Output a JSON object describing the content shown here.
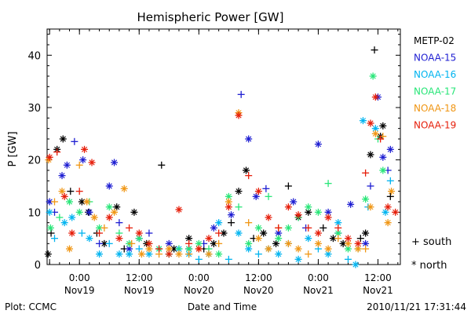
{
  "chart_data": {
    "type": "scatter",
    "title": "Hemispheric Power [GW]",
    "ylabel": "P [GW]",
    "xlabel": "Date and Time",
    "footer_left": "Plot: CCMC",
    "footer_right": "2010/11/21 17:31:44",
    "ylim": [
      0,
      45
    ],
    "yticks": [
      0,
      10,
      20,
      30,
      40
    ],
    "xlim_hours": [
      -6.5,
      17.9
    ],
    "xticks": [
      {
        "hour": -6,
        "label": "",
        "sub": ""
      },
      {
        "hour": 0,
        "label": "0:00",
        "sub": "Nov19"
      },
      {
        "hour": 12,
        "label": "12:00",
        "sub": "Nov19"
      },
      {
        "hour": 24,
        "label": "0:00",
        "sub": "Nov20"
      },
      {
        "hour": 36,
        "label": "12:00",
        "sub": "Nov20"
      },
      {
        "hour": 48,
        "label": "0:00",
        "sub": "Nov21"
      },
      {
        "hour": 60,
        "label": "12:00",
        "sub": "Nov21"
      }
    ],
    "marker_legend": [
      {
        "symbol": "+",
        "label": "south"
      },
      {
        "symbol": "*",
        "label": "north"
      }
    ],
    "series": [
      {
        "name": "METP-02",
        "color": "#000000",
        "points": [
          [
            -6.3,
            2
          ],
          [
            -5.7,
            6
          ],
          [
            -4.5,
            22
          ],
          [
            -3.3,
            24
          ],
          [
            -1.8,
            14
          ],
          [
            0.5,
            12
          ],
          [
            1.8,
            10
          ],
          [
            3.5,
            6
          ],
          [
            5.0,
            4
          ],
          [
            7.5,
            11
          ],
          [
            9,
            3
          ],
          [
            11,
            10
          ],
          [
            13.5,
            4
          ],
          [
            16.5,
            19
          ],
          [
            19,
            3
          ],
          [
            22,
            5
          ],
          [
            25,
            3
          ],
          [
            27,
            4
          ],
          [
            29,
            6
          ],
          [
            30.5,
            8
          ],
          [
            32,
            14
          ],
          [
            33.5,
            18
          ],
          [
            35,
            5
          ],
          [
            37,
            6
          ],
          [
            39.5,
            4
          ],
          [
            42,
            15
          ],
          [
            44,
            9
          ],
          [
            46,
            10
          ],
          [
            49,
            7
          ],
          [
            51,
            5
          ],
          [
            53,
            4
          ],
          [
            56.5,
            5
          ],
          [
            57.5,
            6
          ],
          [
            58.5,
            21
          ],
          [
            59.3,
            41
          ],
          [
            60.5,
            24.5
          ],
          [
            61,
            26.5
          ],
          [
            62.5,
            13
          ]
        ]
      },
      {
        "name": "NOAA-15",
        "color": "#1e1ed2",
        "points": [
          [
            -6,
            12
          ],
          [
            -5,
            10
          ],
          [
            -3.5,
            17
          ],
          [
            -2.5,
            19
          ],
          [
            -1,
            23.5
          ],
          [
            0.7,
            20
          ],
          [
            2,
            10
          ],
          [
            4,
            4
          ],
          [
            6,
            15
          ],
          [
            7,
            19.5
          ],
          [
            8,
            8
          ],
          [
            10,
            3
          ],
          [
            12,
            5
          ],
          [
            14,
            6
          ],
          [
            18,
            4
          ],
          [
            22,
            3
          ],
          [
            25,
            4
          ],
          [
            27,
            7
          ],
          [
            30.5,
            9.5
          ],
          [
            32.5,
            32.5
          ],
          [
            34,
            24
          ],
          [
            35.5,
            13
          ],
          [
            37.5,
            14.5
          ],
          [
            40,
            6
          ],
          [
            43,
            12
          ],
          [
            45.5,
            7
          ],
          [
            48,
            23
          ],
          [
            50,
            10
          ],
          [
            52,
            6
          ],
          [
            54.5,
            11.5
          ],
          [
            57.5,
            4
          ],
          [
            58.5,
            15
          ],
          [
            60,
            32
          ],
          [
            61,
            20.5
          ],
          [
            62,
            18
          ],
          [
            62.5,
            22
          ]
        ]
      },
      {
        "name": "NOAA-16",
        "color": "#00b4f0",
        "points": [
          [
            -6,
            10
          ],
          [
            -5,
            5
          ],
          [
            -3,
            8
          ],
          [
            -1.5,
            9
          ],
          [
            0.5,
            6
          ],
          [
            2,
            5
          ],
          [
            4,
            2
          ],
          [
            6,
            4
          ],
          [
            8,
            2
          ],
          [
            10,
            2
          ],
          [
            12,
            3
          ],
          [
            14,
            2
          ],
          [
            16,
            3
          ],
          [
            18,
            2
          ],
          [
            20,
            3
          ],
          [
            22,
            2
          ],
          [
            24,
            1
          ],
          [
            26,
            2
          ],
          [
            28,
            8
          ],
          [
            30,
            1
          ],
          [
            32,
            6
          ],
          [
            34,
            3
          ],
          [
            36,
            2
          ],
          [
            38,
            3
          ],
          [
            40,
            2
          ],
          [
            42,
            4
          ],
          [
            44,
            1
          ],
          [
            46,
            5
          ],
          [
            48,
            3
          ],
          [
            50,
            2
          ],
          [
            52,
            8
          ],
          [
            54,
            1
          ],
          [
            55.5,
            0
          ],
          [
            57,
            27.5
          ],
          [
            58,
            11
          ],
          [
            59.5,
            26
          ],
          [
            61.5,
            10
          ],
          [
            62.5,
            16
          ]
        ]
      },
      {
        "name": "NOAA-17",
        "color": "#28e678",
        "points": [
          [
            -5.8,
            7
          ],
          [
            -4,
            9
          ],
          [
            -2,
            12
          ],
          [
            0,
            10
          ],
          [
            2,
            12
          ],
          [
            4,
            7
          ],
          [
            6,
            11
          ],
          [
            8,
            6
          ],
          [
            10,
            4
          ],
          [
            12,
            5
          ],
          [
            14,
            4
          ],
          [
            16,
            3
          ],
          [
            18,
            2
          ],
          [
            20,
            3
          ],
          [
            22,
            3
          ],
          [
            24,
            4
          ],
          [
            26,
            3
          ],
          [
            28,
            2
          ],
          [
            30,
            13
          ],
          [
            32,
            11
          ],
          [
            34,
            4
          ],
          [
            36,
            7
          ],
          [
            38,
            13
          ],
          [
            40,
            5
          ],
          [
            42,
            7
          ],
          [
            44,
            9
          ],
          [
            46,
            11
          ],
          [
            48,
            10
          ],
          [
            50,
            15.5
          ],
          [
            52,
            6
          ],
          [
            54,
            3
          ],
          [
            56,
            3
          ],
          [
            57.5,
            12.5
          ],
          [
            59,
            36
          ],
          [
            60,
            24
          ],
          [
            61,
            18
          ]
        ]
      },
      {
        "name": "NOAA-18",
        "color": "#f09614",
        "points": [
          [
            -6.2,
            20
          ],
          [
            -5,
            12
          ],
          [
            -3.5,
            14
          ],
          [
            -2,
            3
          ],
          [
            0,
            19
          ],
          [
            1.5,
            12
          ],
          [
            3,
            9
          ],
          [
            5,
            7
          ],
          [
            7,
            10
          ],
          [
            9,
            14.5
          ],
          [
            10.5,
            4
          ],
          [
            12.5,
            2
          ],
          [
            14,
            3
          ],
          [
            16,
            2
          ],
          [
            18,
            3
          ],
          [
            20,
            2
          ],
          [
            22,
            2
          ],
          [
            24,
            3
          ],
          [
            26,
            2
          ],
          [
            28,
            4
          ],
          [
            30,
            12
          ],
          [
            32,
            29
          ],
          [
            34,
            8
          ],
          [
            36,
            5
          ],
          [
            38,
            3
          ],
          [
            40,
            7
          ],
          [
            42,
            4
          ],
          [
            44,
            3
          ],
          [
            46,
            2
          ],
          [
            48,
            4
          ],
          [
            50,
            3
          ],
          [
            52,
            5
          ],
          [
            54,
            4
          ],
          [
            56,
            3
          ],
          [
            57.5,
            3
          ],
          [
            58.5,
            11
          ],
          [
            59.5,
            25
          ],
          [
            61,
            24.5
          ],
          [
            62,
            8
          ],
          [
            62.7,
            14
          ]
        ]
      },
      {
        "name": "NOAA-19",
        "color": "#e61e0a",
        "points": [
          [
            -6,
            20.5
          ],
          [
            -4.5,
            21.5
          ],
          [
            -3,
            13
          ],
          [
            -1.5,
            6
          ],
          [
            0,
            14
          ],
          [
            1,
            22
          ],
          [
            2.5,
            19.5
          ],
          [
            4,
            6
          ],
          [
            6,
            9
          ],
          [
            8,
            5
          ],
          [
            10,
            7
          ],
          [
            12,
            6
          ],
          [
            14,
            4
          ],
          [
            16,
            3
          ],
          [
            18,
            2
          ],
          [
            20,
            10.5
          ],
          [
            22,
            4
          ],
          [
            24,
            3
          ],
          [
            26,
            5
          ],
          [
            28,
            6
          ],
          [
            30,
            11
          ],
          [
            32,
            28.5
          ],
          [
            34,
            17
          ],
          [
            36,
            14
          ],
          [
            38,
            9
          ],
          [
            40,
            7
          ],
          [
            42,
            11
          ],
          [
            44,
            9.5
          ],
          [
            46,
            7
          ],
          [
            48,
            6
          ],
          [
            50,
            9
          ],
          [
            52,
            7
          ],
          [
            54,
            5
          ],
          [
            56,
            4
          ],
          [
            57.5,
            17.5
          ],
          [
            58.5,
            27
          ],
          [
            59.5,
            32
          ],
          [
            60.5,
            24
          ],
          [
            62,
            11
          ],
          [
            63.5,
            10
          ]
        ]
      }
    ]
  }
}
